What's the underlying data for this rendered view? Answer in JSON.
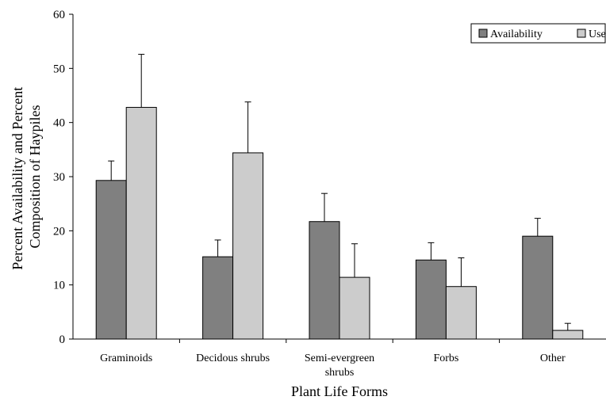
{
  "chart_data": {
    "type": "bar",
    "title": "",
    "xlabel": "Plant Life Forms",
    "ylabel_lines": [
      "Percent Availability and Percent",
      "Composition of Haypiles"
    ],
    "ylim": [
      0,
      60
    ],
    "yticks": [
      0,
      10,
      20,
      30,
      40,
      50,
      60
    ],
    "categories": [
      [
        "Graminoids"
      ],
      [
        "Decidous shrubs"
      ],
      [
        "Semi-evergreen",
        "shrubs"
      ],
      [
        "Forbs"
      ],
      [
        "Other"
      ]
    ],
    "series": [
      {
        "name": "Availability",
        "color": "#808080",
        "values": [
          29.3,
          15.2,
          21.7,
          14.6,
          19.0
        ],
        "error_upper": [
          3.6,
          3.1,
          5.2,
          3.2,
          3.3
        ]
      },
      {
        "name": "Use",
        "color": "#cccccc",
        "values": [
          42.8,
          34.4,
          11.4,
          9.7,
          1.6
        ],
        "error_upper": [
          9.8,
          9.4,
          6.2,
          5.3,
          1.3
        ]
      }
    ],
    "legend_position": "top-right",
    "grid": false
  }
}
